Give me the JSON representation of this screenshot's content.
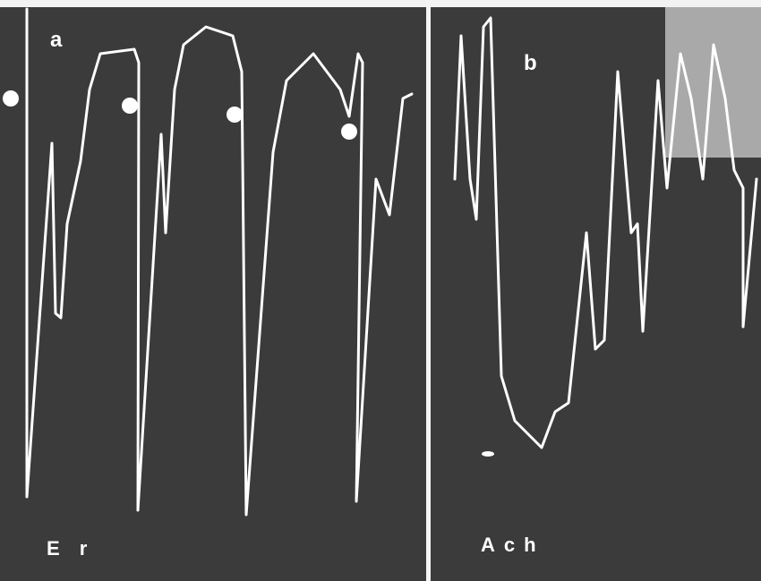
{
  "panels": [
    {
      "label": "a",
      "caption": "E r"
    },
    {
      "label": "b",
      "caption": "Ach"
    }
  ]
}
